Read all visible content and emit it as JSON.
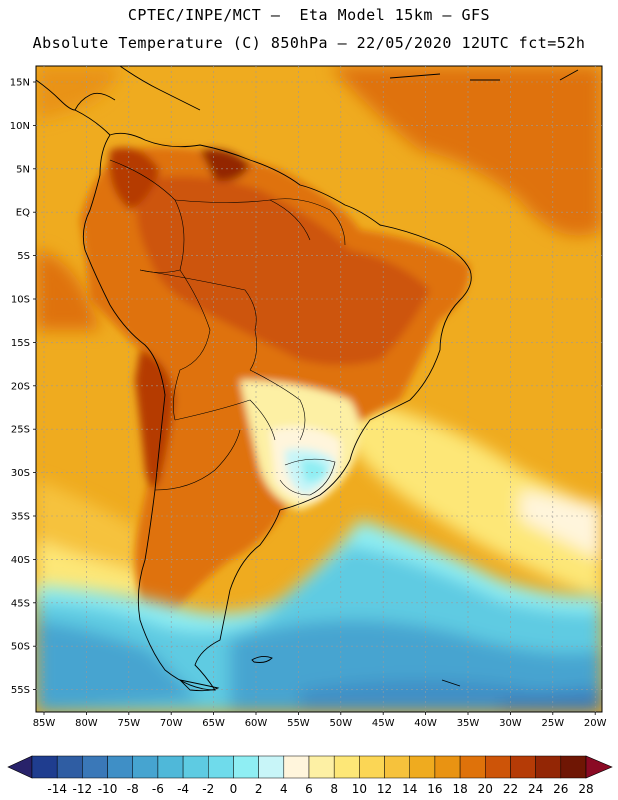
{
  "header": {
    "line1": "CPTEC/INPE/MCT —  Eta Model 15km — GFS",
    "line2": "Absolute Temperature (C) 850hPa — 22/05/2020 12UTC fct=52h"
  },
  "map": {
    "lat_labels": [
      "15N",
      "10N",
      "5N",
      "EQ",
      "5S",
      "10S",
      "15S",
      "20S",
      "25S",
      "30S",
      "35S",
      "40S",
      "45S",
      "50S",
      "55S"
    ],
    "lon_labels": [
      "85W",
      "80W",
      "75W",
      "70W",
      "65W",
      "60W",
      "55W",
      "50W",
      "45W",
      "40W",
      "35W",
      "30W",
      "25W",
      "20W"
    ]
  },
  "colorbar": {
    "labels": [
      "-14",
      "-12",
      "-10",
      "-8",
      "-6",
      "-4",
      "-2",
      "0",
      "2",
      "4",
      "6",
      "8",
      "10",
      "12",
      "14",
      "16",
      "18",
      "20",
      "22",
      "24",
      "26",
      "28"
    ],
    "colors": [
      "#1f3d8f",
      "#2f5da3",
      "#3a78b8",
      "#3f8fc6",
      "#46a4d0",
      "#4fb8d9",
      "#5ecbe2",
      "#6fdbeb",
      "#8feef3",
      "#c8f5f8",
      "#fff5dc",
      "#fdf0a4",
      "#fde777",
      "#fbd655",
      "#f6c23c",
      "#efab1f",
      "#e99312",
      "#df720a",
      "#cd5408",
      "#b53b06",
      "#932605",
      "#6f1604"
    ],
    "low_cap": "#28226a",
    "high_cap": "#8a0a24"
  }
}
